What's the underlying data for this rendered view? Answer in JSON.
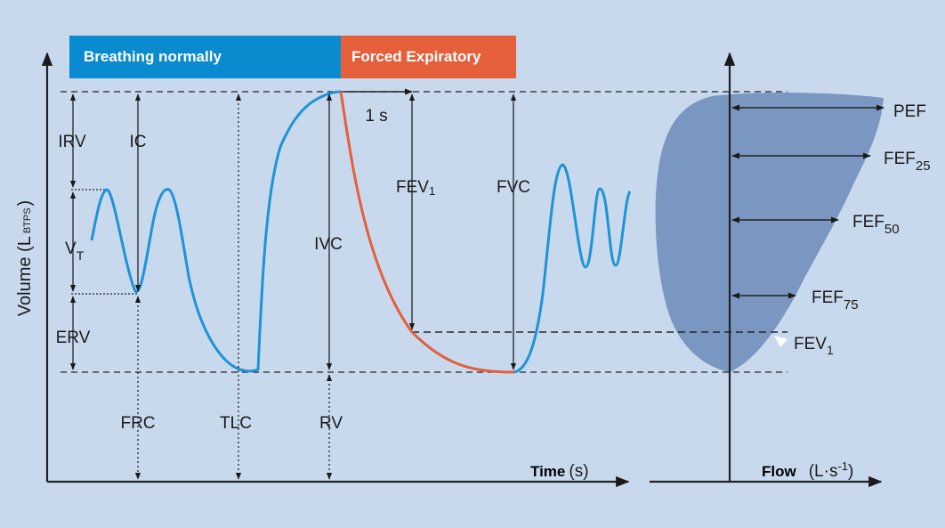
{
  "banners": {
    "normal": "Breathing normally",
    "forced": "Forced Expiratory"
  },
  "axes": {
    "y_title": "Volume (L",
    "y_title_sub": "BTPS",
    "y_title_close": ")",
    "x_time_title": "Time",
    "x_time_unit": "(s)",
    "x_flow_title": "Flow",
    "x_flow_unit_a": "(L·s",
    "x_flow_unit_sup": "-1",
    "x_flow_unit_b": ")"
  },
  "labels": {
    "irv": "IRV",
    "ic": "IC",
    "vt": "V",
    "vt_sub": "T",
    "erv": "ERV",
    "frc": "FRC",
    "tlc": "TLC",
    "ivc": "IVC",
    "rv": "RV",
    "one_s": "1 s",
    "fev1_base": "FEV",
    "fev1_sub": "1",
    "fvc": "FVC"
  },
  "flow_labels": {
    "pef": "PEF",
    "fef25": "FEF",
    "fef25_sub": "25",
    "fef50": "FEF",
    "fef50_sub": "50",
    "fef75": "FEF",
    "fef75_sub": "75",
    "fev1": "FEV",
    "fev1_sub": "1"
  },
  "colors": {
    "background": "#c8d9ee",
    "normal_banner": "#0a8bd0",
    "forced_banner": "#e55f3a",
    "normal_curve": "#1e93d6",
    "forced_curve": "#e55f3a",
    "flow_loop": "#7a97c2"
  }
}
